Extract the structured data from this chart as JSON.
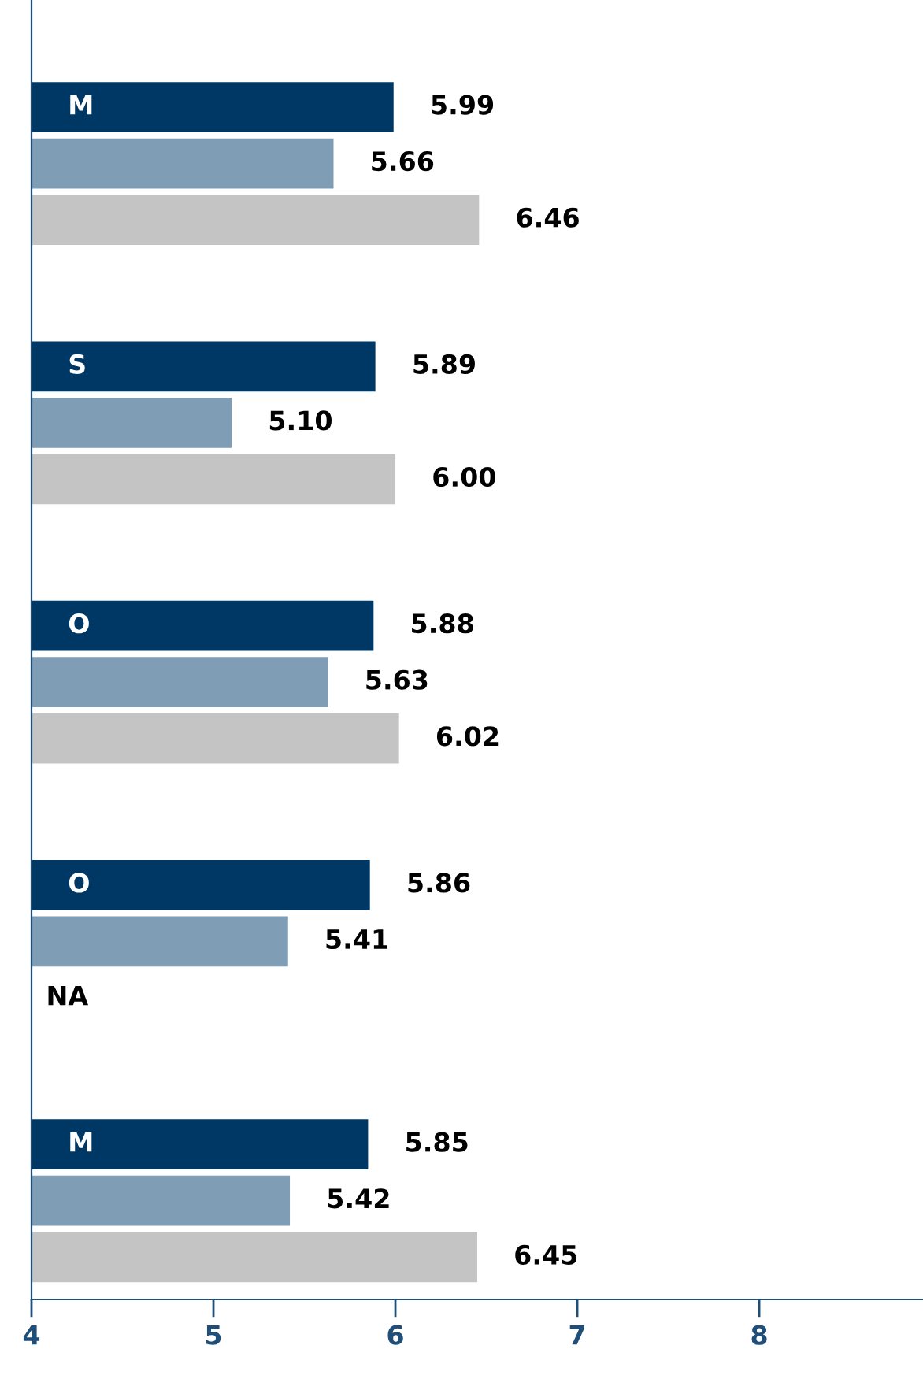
{
  "chart_data": {
    "type": "bar",
    "orientation": "horizontal",
    "categories": [
      "M",
      "S",
      "O",
      "O",
      "M"
    ],
    "series": [
      {
        "color": "#003865",
        "values": [
          5.99,
          5.89,
          5.88,
          5.86,
          5.85
        ],
        "value_labels": [
          "5.99",
          "5.89",
          "5.88",
          "5.86",
          "5.85"
        ]
      },
      {
        "color": "#7f9db5",
        "values": [
          5.66,
          5.1,
          5.63,
          5.41,
          5.42
        ],
        "value_labels": [
          "5.66",
          "5.10",
          "5.63",
          "5.41",
          "5.42"
        ]
      },
      {
        "color": "#c4c4c4",
        "values": [
          6.46,
          6.0,
          6.02,
          null,
          6.45
        ],
        "value_labels": [
          "6.46",
          "6.00",
          "6.02",
          "NA",
          "6.45"
        ]
      }
    ],
    "xlim": [
      4,
      8.9
    ],
    "xticks": [
      4,
      5,
      6,
      7,
      8
    ],
    "grid": false,
    "legend": false
  }
}
